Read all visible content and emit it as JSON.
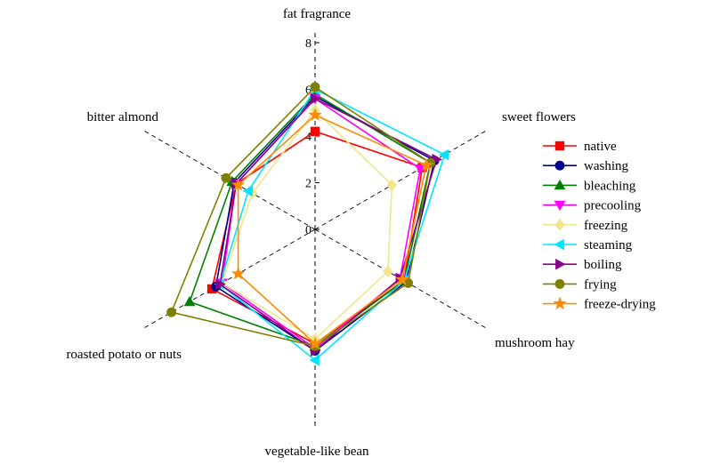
{
  "chart_data": {
    "type": "radar",
    "axes": [
      "fat fragrance",
      "sweet flowers",
      "mushroom hay",
      "vegetable-like bean",
      "roasted potato or nuts",
      "bitter almond"
    ],
    "rlim": [
      0,
      8
    ],
    "ticks": [
      "0",
      "2",
      "4",
      "6",
      "8"
    ],
    "legend_position": "right",
    "series": [
      {
        "name": "native",
        "color": "#ff0000",
        "marker": "square",
        "values": [
          4.2,
          5.3,
          4.4,
          4.9,
          5.1,
          3.9
        ]
      },
      {
        "name": "washing",
        "color": "#00008b",
        "marker": "circle",
        "values": [
          5.7,
          5.9,
          4.5,
          5.2,
          4.9,
          4.0
        ]
      },
      {
        "name": "bleaching",
        "color": "#008000",
        "marker": "triangle-up",
        "values": [
          5.8,
          5.7,
          4.4,
          5.0,
          6.2,
          4.1
        ]
      },
      {
        "name": "precooling",
        "color": "#ff00ff",
        "marker": "triangle-down",
        "values": [
          5.6,
          5.2,
          4.2,
          5.1,
          4.6,
          3.9
        ]
      },
      {
        "name": "freezing",
        "color": "#f0e68c",
        "marker": "diamond",
        "values": [
          5.1,
          3.8,
          3.6,
          4.7,
          4.6,
          3.1
        ]
      },
      {
        "name": "steaming",
        "color": "#00e5ff",
        "marker": "triangle-left",
        "values": [
          6.0,
          6.4,
          4.4,
          5.6,
          4.7,
          3.3
        ]
      },
      {
        "name": "boiling",
        "color": "#8b008b",
        "marker": "triangle-right",
        "values": [
          5.6,
          6.0,
          4.2,
          5.2,
          4.7,
          3.9
        ]
      },
      {
        "name": "frying",
        "color": "#808000",
        "marker": "circle",
        "values": [
          6.1,
          5.7,
          4.6,
          5.0,
          7.1,
          4.4
        ]
      },
      {
        "name": "freeze-drying",
        "color": "#ff8c00",
        "marker": "star",
        "values": [
          4.9,
          5.5,
          4.3,
          4.9,
          3.8,
          3.8
        ]
      }
    ]
  }
}
